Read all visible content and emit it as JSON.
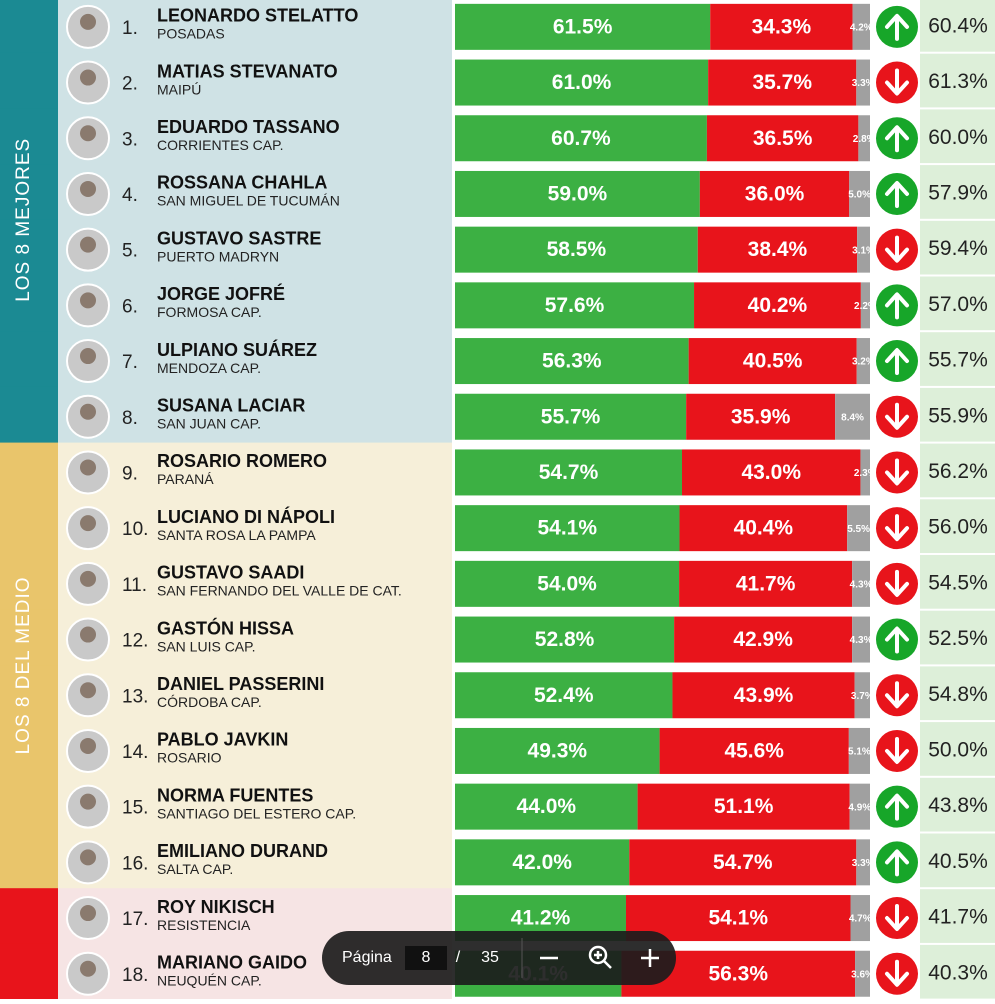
{
  "chart_data": {
    "type": "bar",
    "orientation": "horizontal",
    "stacked": true,
    "xlim": [
      0,
      100
    ],
    "groups": [
      {
        "label": "LOS 8 MEJORES",
        "color": "#1b8a93",
        "band": "#cfe2e5"
      },
      {
        "label": "LOS 8 DEL MEDIO",
        "color": "#e9c56b",
        "band": "#f6efd9"
      }
    ],
    "ranks": [
      "1.",
      "2.",
      "3.",
      "4.",
      "5.",
      "6.",
      "7.",
      "8.",
      "9.",
      "10.",
      "11.",
      "12.",
      "13.",
      "14.",
      "15.",
      "16.",
      "17.",
      "18."
    ],
    "categories": [
      "LEONARDO STELATTO",
      "MATIAS STEVANATO",
      "EDUARDO TASSANO",
      "ROSSANA CHAHLA",
      "GUSTAVO SASTRE",
      "JORGE JOFRÉ",
      "ULPIANO SUÁREZ",
      "SUSANA LACIAR",
      "ROSARIO ROMERO",
      "LUCIANO DI NÁPOLI",
      "GUSTAVO SAADI",
      "GASTÓN HISSA",
      "DANIEL PASSERINI",
      "PABLO JAVKIN",
      "NORMA FUENTES",
      "EMILIANO DURAND",
      "ROY NIKISCH",
      "MARIANO GAIDO"
    ],
    "cities": [
      "POSADAS",
      "MAIPÚ",
      "CORRIENTES  CAP.",
      "SAN MIGUEL DE TUCUMÁN",
      "PUERTO MADRYN",
      "FORMOSA CAP.",
      "MENDOZA CAP.",
      "SAN JUAN CAP.",
      "PARANÁ",
      "SANTA ROSA LA PAMPA",
      "SAN FERNANDO DEL VALLE DE CAT.",
      "SAN LUIS CAP.",
      "CÓRDOBA CAP.",
      "ROSARIO",
      "SANTIAGO DEL ESTERO CAP.",
      "SALTA CAP.",
      "RESISTENCIA",
      "NEUQUÉN CAP."
    ],
    "series": [
      {
        "color": "#3cb043",
        "values": [
          61.5,
          61.0,
          60.7,
          59.0,
          58.5,
          57.6,
          56.3,
          55.7,
          54.7,
          54.1,
          54.0,
          52.8,
          52.4,
          49.3,
          44.0,
          42.0,
          41.2,
          40.1
        ],
        "value_labels": [
          "61.5%",
          "61.0%",
          "60.7%",
          "59.0%",
          "58.5%",
          "57.6%",
          "56.3%",
          "55.7%",
          "54.7%",
          "54.1%",
          "54.0%",
          "52.8%",
          "52.4%",
          "49.3%",
          "44.0%",
          "42.0%",
          "41.2%",
          "40.1%"
        ]
      },
      {
        "color": "#e8141b",
        "values": [
          34.3,
          35.7,
          36.5,
          36.0,
          38.4,
          40.2,
          40.5,
          35.9,
          43.0,
          40.4,
          41.7,
          42.9,
          43.9,
          45.6,
          51.1,
          54.7,
          54.1,
          56.3
        ],
        "value_labels": [
          "34.3%",
          "35.7%",
          "36.5%",
          "36.0%",
          "38.4%",
          "40.2%",
          "40.5%",
          "35.9%",
          "43.0%",
          "40.4%",
          "41.7%",
          "42.9%",
          "43.9%",
          "45.6%",
          "51.1%",
          "54.7%",
          "54.1%",
          "56.3%"
        ]
      },
      {
        "color": "#a0a0a0",
        "values": [
          4.2,
          3.3,
          2.8,
          5.0,
          3.1,
          2.2,
          3.2,
          8.4,
          2.3,
          5.5,
          4.3,
          4.3,
          3.7,
          5.1,
          4.9,
          3.3,
          4.7,
          3.6
        ],
        "value_labels": [
          "4.2%",
          "3.3%",
          "2.8%",
          "5.0%",
          "3.1%",
          "2.2%",
          "3.2%",
          "8.4%",
          "2.3%",
          "5.5%",
          "4.3%",
          "4.3%",
          "3.7%",
          "5.1%",
          "4.9%",
          "3.3%",
          "4.7%",
          "3.6%"
        ]
      }
    ],
    "trend": [
      "up",
      "down",
      "up",
      "up",
      "down",
      "up",
      "up",
      "down",
      "down",
      "down",
      "down",
      "up",
      "down",
      "down",
      "up",
      "up",
      "down",
      "down"
    ],
    "previous": [
      "60.4%",
      "61.3%",
      "60.0%",
      "57.9%",
      "59.4%",
      "57.0%",
      "55.7%",
      "55.9%",
      "56.2%",
      "56.0%",
      "54.5%",
      "52.5%",
      "54.8%",
      "50.0%",
      "43.8%",
      "40.5%",
      "41.7%",
      "40.3%"
    ]
  },
  "viewer": {
    "page_label": "Página",
    "page": "8",
    "separator": "/",
    "total": "35"
  }
}
